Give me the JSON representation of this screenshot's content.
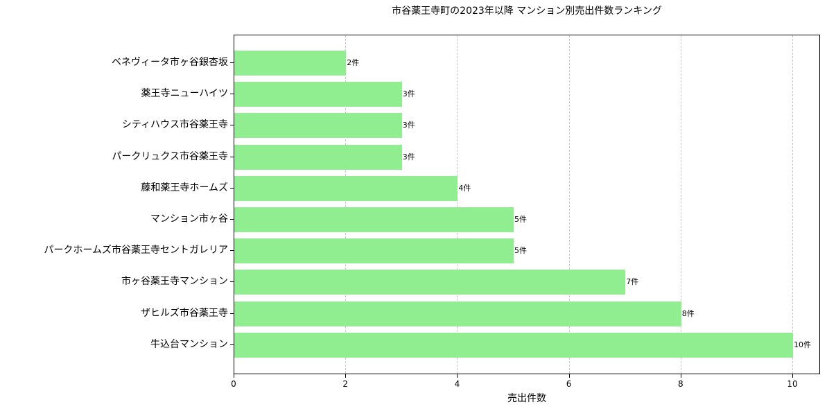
{
  "chart_data": {
    "type": "bar",
    "orientation": "horizontal",
    "title": "市谷薬王寺町の2023年以降 マンション別売出件数ランキング",
    "xlabel": "売出件数",
    "ylabel": "",
    "xlim": [
      0,
      10.5
    ],
    "xticks": [
      0,
      2,
      4,
      6,
      8,
      10
    ],
    "grid": {
      "x": true,
      "y": false,
      "style": "dashed"
    },
    "bar_color": "#90ee90",
    "categories": [
      "ベネヴィータ市ヶ谷銀杏坂",
      "薬王寺ニューハイツ",
      "シティハウス市谷薬王寺",
      "パークリュクス市谷薬王寺",
      "藤和薬王寺ホームズ",
      "マンション市ヶ谷",
      "パークホームズ市谷薬王寺セントガレリア",
      "市ヶ谷薬王寺マンション",
      "ザヒルズ市谷薬王寺",
      "牛込台マンション"
    ],
    "values": [
      2,
      3,
      3,
      3,
      4,
      5,
      5,
      7,
      8,
      10
    ],
    "data_labels": [
      "2件",
      "3件",
      "3件",
      "3件",
      "4件",
      "5件",
      "5件",
      "7件",
      "8件",
      "10件"
    ]
  }
}
